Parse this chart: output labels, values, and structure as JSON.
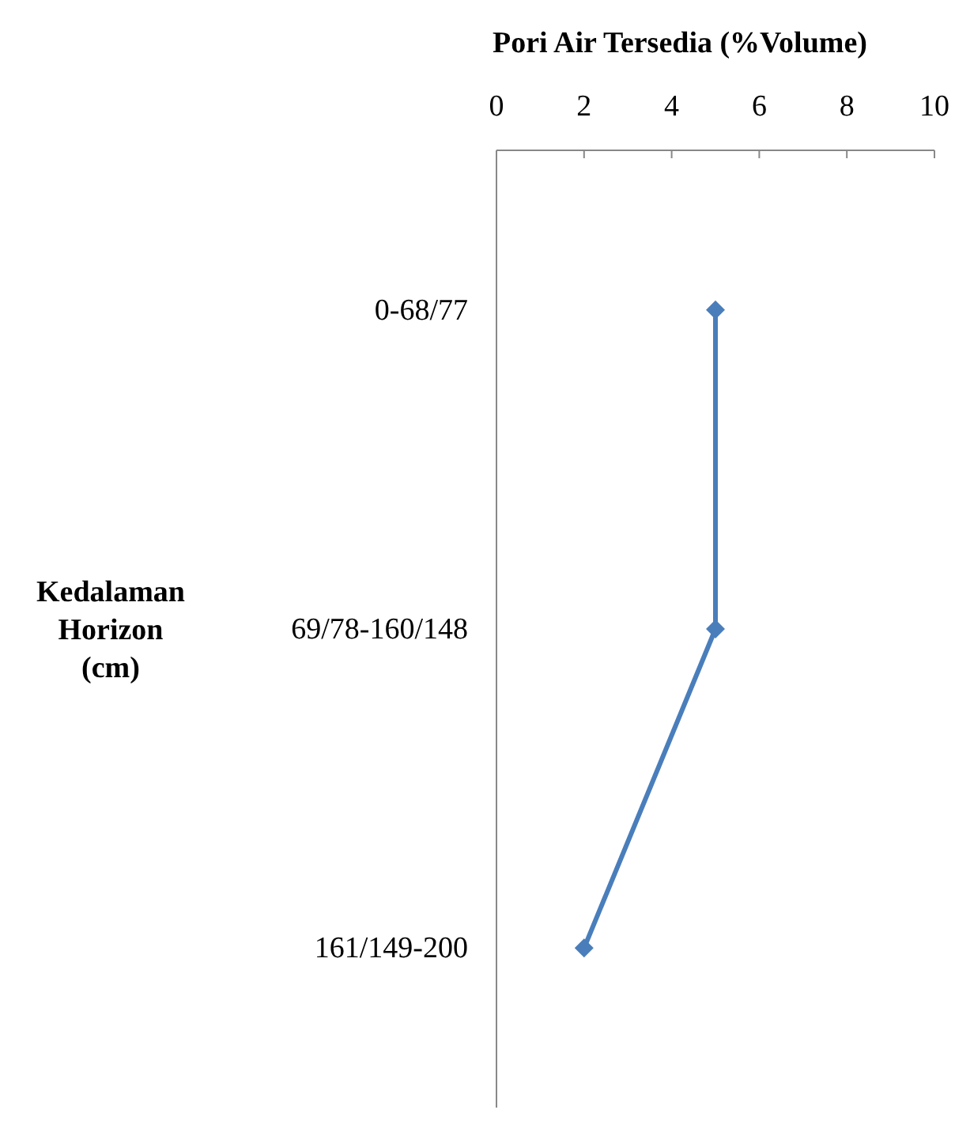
{
  "chart_data": {
    "type": "line",
    "orientation": "horizontal",
    "xlabel": "Pori Air Tersedia (%Volume)",
    "ylabel": "Kedalaman Horizon (cm)",
    "categories": [
      "0-68/77",
      "69/78-160/148",
      "161/149-200"
    ],
    "series": [
      {
        "color": "#4a7ebb",
        "values": [
          5,
          5,
          2
        ]
      }
    ],
    "xlim": [
      0,
      10
    ],
    "xticks": [
      0,
      2,
      4,
      6,
      8,
      10
    ],
    "marker": "diamond",
    "line_style": "solid",
    "grid": false
  }
}
